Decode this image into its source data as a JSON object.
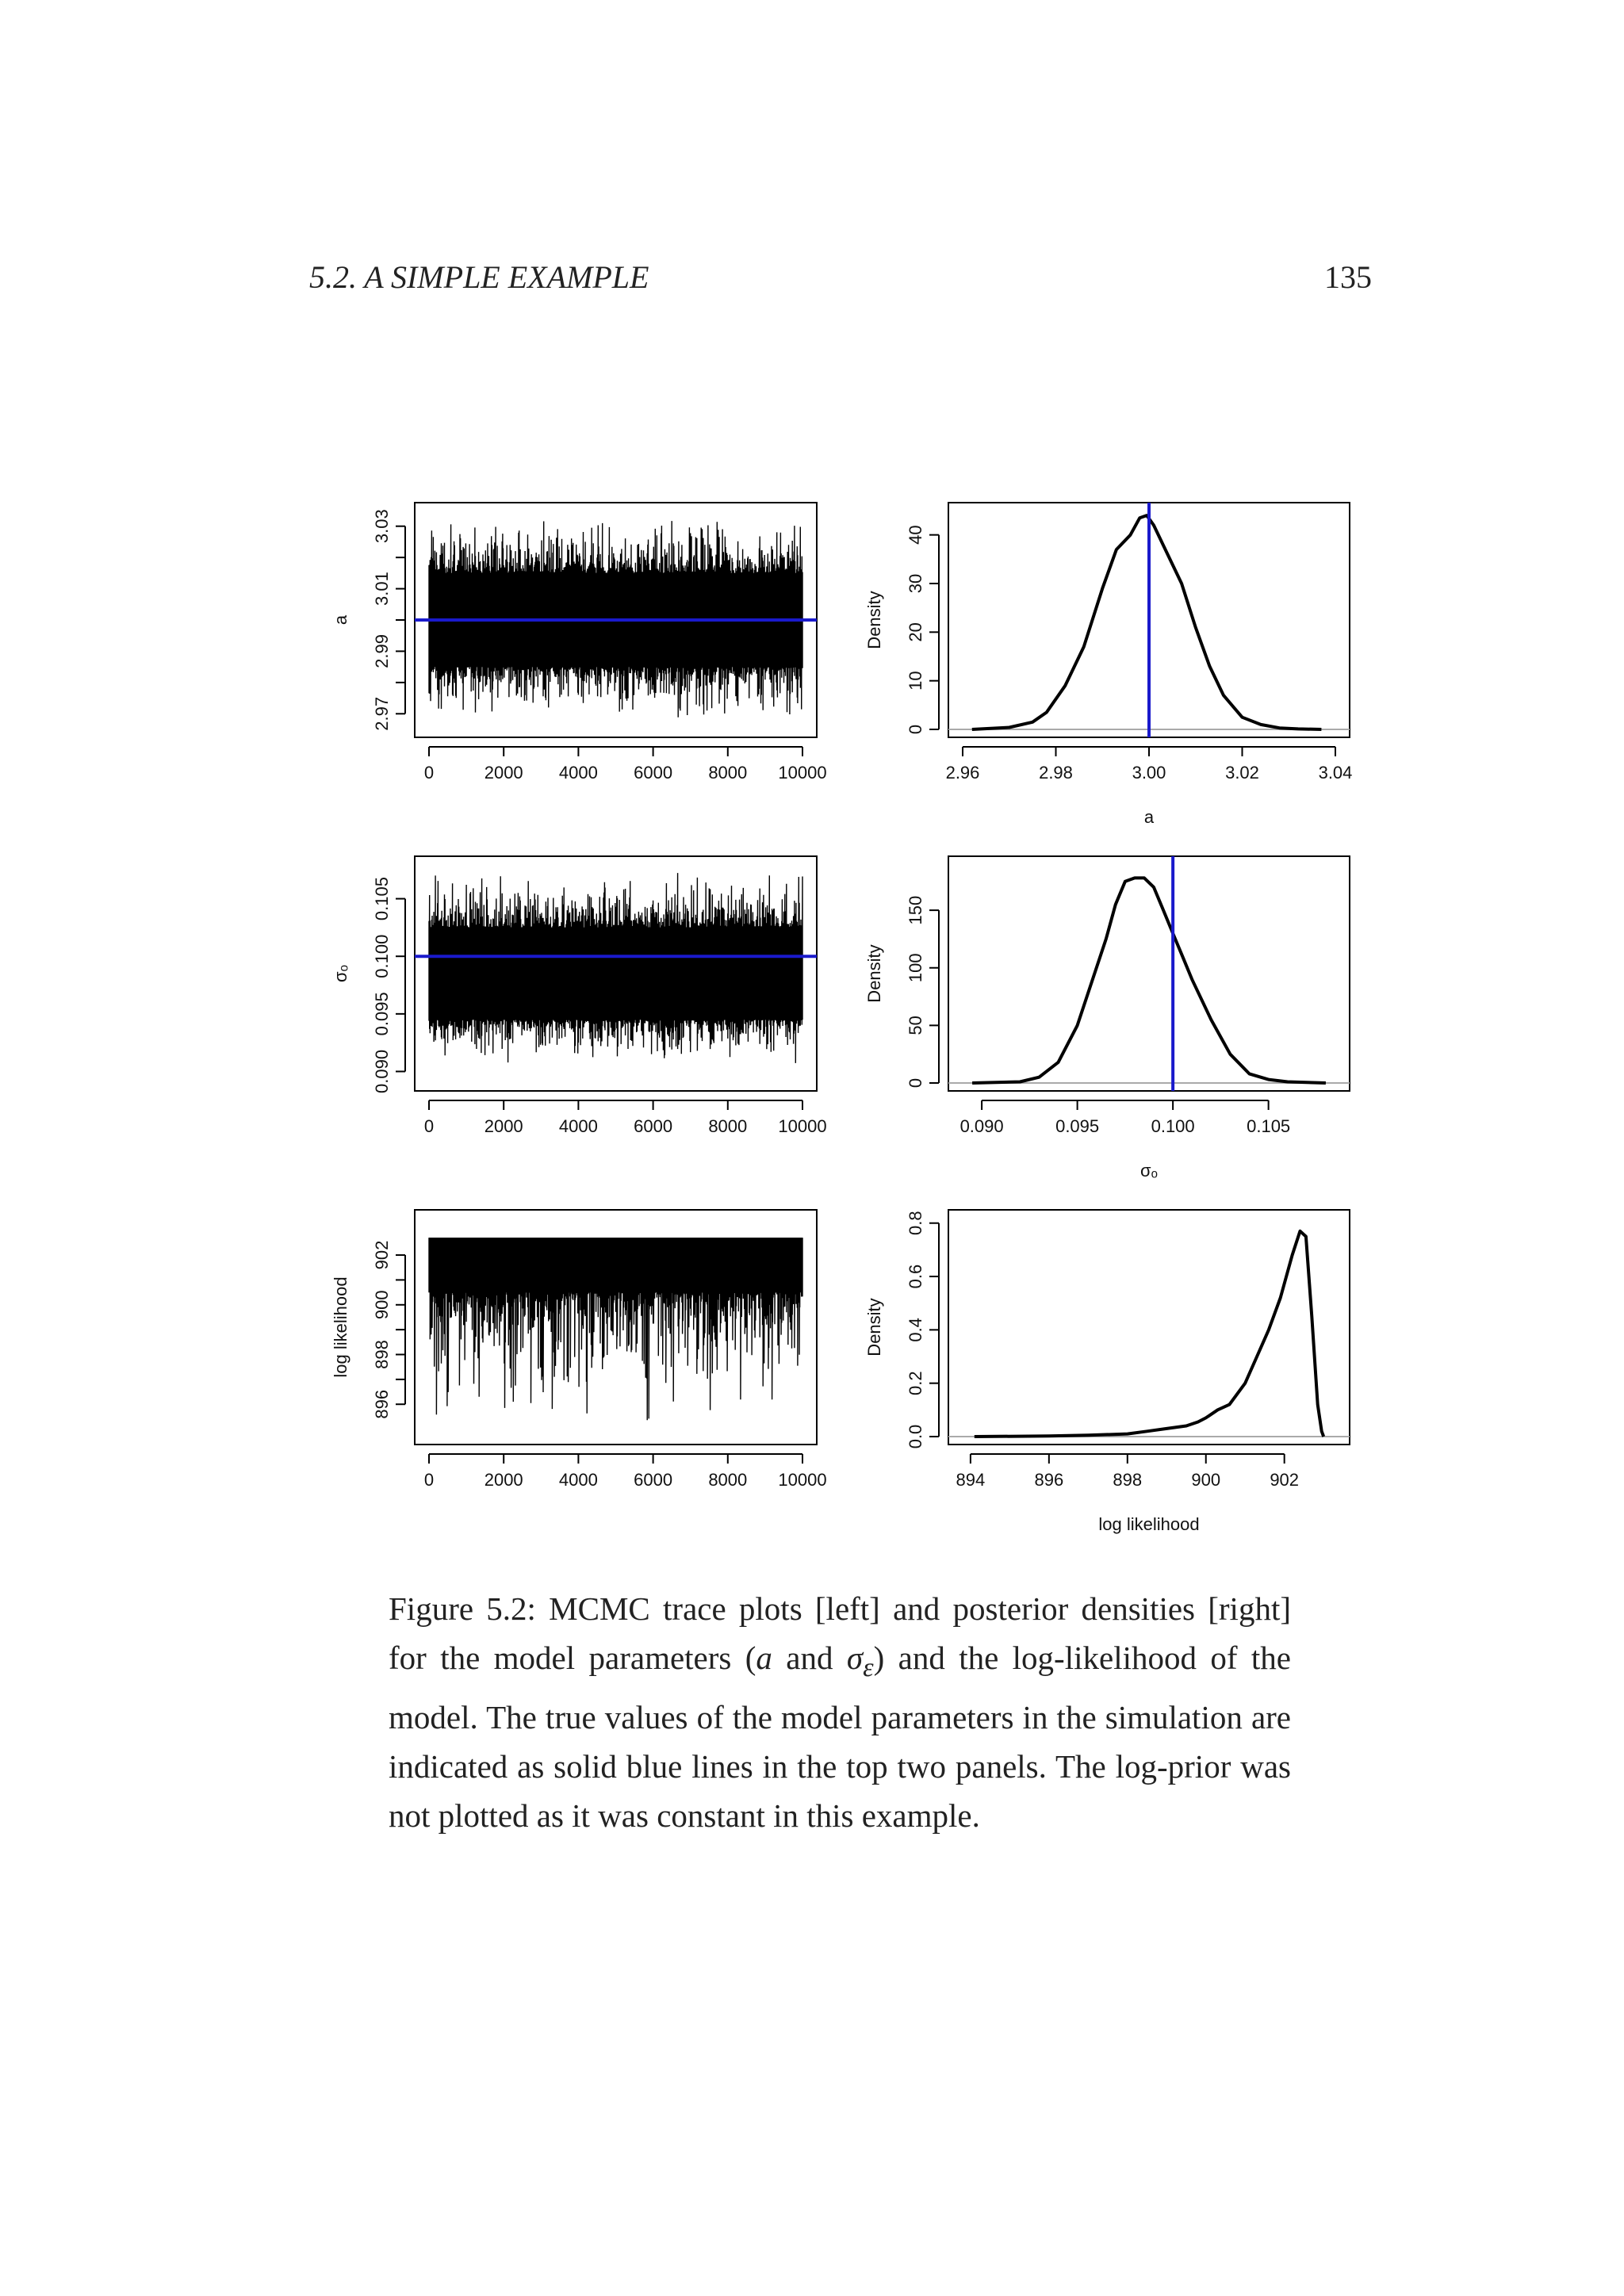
{
  "header": {
    "section": "5.2.  A SIMPLE EXAMPLE",
    "page_number": "135"
  },
  "caption": {
    "lead": "Figure 5.2:  MCMC trace plots [left] and posterior densities [right] for the model parameters (",
    "param_a": "a",
    "mid": " and ",
    "param_sigma": "σ",
    "param_sigma_sub": "ε",
    "tail": ") and the log-likelihood of the model. The true values of the model parameters in the simulation are indicated as solid blue lines in the top two panels. The log-prior was not plotted as it was constant in this example."
  },
  "colors": {
    "trace": "#000000",
    "true_value": "#1a1acc",
    "zero_line": "#aaaaaa"
  },
  "chart_data": [
    {
      "type": "line",
      "xlabel": "",
      "ylabel": "a",
      "xlim": [
        0,
        10000
      ],
      "ylim": [
        2.965,
        3.035
      ],
      "xticks": [
        0,
        2000,
        4000,
        6000,
        8000,
        10000
      ],
      "yticks": [
        2.97,
        2.98,
        2.99,
        3.0,
        3.01,
        3.02,
        3.03
      ],
      "ytick_labels": [
        "2.97",
        "",
        "2.99",
        "",
        "3.01",
        "",
        "3.03"
      ],
      "trace": {
        "n": 10000,
        "center": 3.0,
        "band": [
          2.985,
          3.015
        ],
        "min": 2.968,
        "max": 3.034
      },
      "true_value": 3.0
    },
    {
      "type": "line",
      "xlabel": "a",
      "ylabel": "Density",
      "xlim": [
        2.96,
        3.04
      ],
      "ylim": [
        0,
        45
      ],
      "xticks": [
        2.96,
        2.98,
        3.0,
        3.02,
        3.04
      ],
      "xtick_labels": [
        "2.96",
        "2.98",
        "3.00",
        "3.02",
        "3.04"
      ],
      "yticks": [
        0,
        10,
        20,
        30,
        40
      ],
      "x": [
        2.962,
        2.97,
        2.975,
        2.978,
        2.982,
        2.986,
        2.99,
        2.993,
        2.996,
        2.998,
        2.9995,
        3.001,
        3.004,
        3.007,
        3.01,
        3.013,
        3.016,
        3.02,
        3.024,
        3.028,
        3.032,
        3.037
      ],
      "y": [
        0,
        0.4,
        1.5,
        3.5,
        9,
        17,
        29,
        37,
        40,
        43.5,
        44,
        42,
        36,
        30,
        21,
        13,
        7,
        2.5,
        1,
        0.3,
        0.1,
        0
      ],
      "true_value": 3.0
    },
    {
      "type": "line",
      "xlabel": "",
      "ylabel": "σₒ",
      "xlim": [
        0,
        10000
      ],
      "ylim": [
        0.089,
        0.108
      ],
      "xticks": [
        0,
        2000,
        4000,
        6000,
        8000,
        10000
      ],
      "yticks": [
        0.09,
        0.095,
        0.1,
        0.105
      ],
      "ytick_labels": [
        "0.090",
        "0.095",
        "0.100",
        "0.105"
      ],
      "trace": {
        "n": 10000,
        "center": 0.0982,
        "band": [
          0.0945,
          0.1025
        ],
        "min": 0.0905,
        "max": 0.1075
      },
      "true_value": 0.1
    },
    {
      "type": "line",
      "xlabel": "σₒ",
      "ylabel": "Density",
      "xlim": [
        0.089,
        0.1085
      ],
      "ylim": [
        0,
        190
      ],
      "xticks": [
        0.09,
        0.095,
        0.1,
        0.105
      ],
      "xtick_labels": [
        "0.090",
        "0.095",
        "0.100",
        "0.105"
      ],
      "yticks": [
        0,
        50,
        100,
        150
      ],
      "x": [
        0.0895,
        0.092,
        0.093,
        0.094,
        0.095,
        0.096,
        0.0965,
        0.097,
        0.0975,
        0.098,
        0.0985,
        0.099,
        0.0995,
        0.1,
        0.1005,
        0.101,
        0.102,
        0.103,
        0.104,
        0.105,
        0.106,
        0.108
      ],
      "y": [
        0,
        1,
        5,
        18,
        50,
        100,
        125,
        155,
        175,
        178,
        178,
        170,
        150,
        130,
        110,
        90,
        55,
        25,
        8,
        3,
        1,
        0
      ],
      "true_value": 0.1
    },
    {
      "type": "line",
      "xlabel": "",
      "ylabel": "log likelihood",
      "xlim": [
        0,
        10000
      ],
      "ylim": [
        894.7,
        903.5
      ],
      "xticks": [
        0,
        2000,
        4000,
        6000,
        8000,
        10000
      ],
      "yticks": [
        896,
        897,
        898,
        899,
        900,
        901,
        902
      ],
      "ytick_labels": [
        "896",
        "",
        "898",
        "",
        "900",
        "",
        "902"
      ],
      "trace": {
        "n": 10000,
        "center": 902.1,
        "band": [
          900.5,
          902.7
        ],
        "min": 895.0,
        "max": 902.7
      }
    },
    {
      "type": "line",
      "xlabel": "log likelihood",
      "ylabel": "Density",
      "xlim": [
        893.8,
        903.3
      ],
      "ylim": [
        0,
        0.82
      ],
      "xticks": [
        894,
        896,
        898,
        900,
        902
      ],
      "yticks": [
        0,
        0.2,
        0.4,
        0.6,
        0.8
      ],
      "ytick_labels": [
        "0.0",
        "0.2",
        "0.4",
        "0.6",
        "0.8"
      ],
      "x": [
        894.1,
        896,
        897,
        898,
        898.5,
        899,
        899.5,
        899.8,
        900,
        900.3,
        900.6,
        901,
        901.3,
        901.6,
        901.9,
        902.2,
        902.4,
        902.55,
        902.7,
        902.85,
        902.95,
        903.0
      ],
      "y": [
        0,
        0.002,
        0.005,
        0.01,
        0.02,
        0.03,
        0.04,
        0.055,
        0.07,
        0.1,
        0.12,
        0.2,
        0.3,
        0.4,
        0.52,
        0.68,
        0.77,
        0.75,
        0.45,
        0.12,
        0.02,
        0
      ]
    }
  ]
}
